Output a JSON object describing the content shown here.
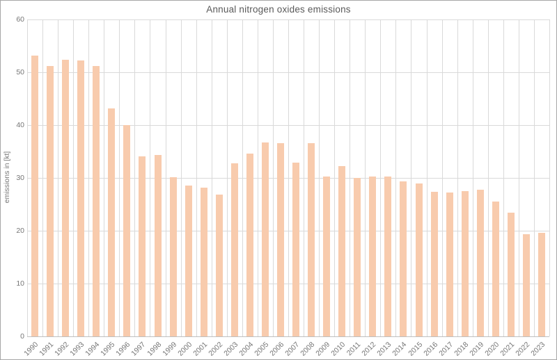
{
  "window": {
    "background": "#ffffff",
    "border_color": "#a6a6a6"
  },
  "chart_data": {
    "type": "bar",
    "title": "Annual nitrogen oxides emissions",
    "xlabel": "",
    "ylabel": "emissions in [kt]",
    "categories": [
      "1990",
      "1991",
      "1992",
      "1993",
      "1994",
      "1995",
      "1996",
      "1997",
      "1998",
      "1999",
      "2000",
      "2001",
      "2002",
      "2003",
      "2004",
      "2005",
      "2006",
      "2007",
      "2008",
      "2009",
      "2010",
      "2011",
      "2012",
      "2013",
      "2014",
      "2015",
      "2016",
      "2017",
      "2018",
      "2019",
      "2020",
      "2021",
      "2022",
      "2023"
    ],
    "values": [
      53.2,
      51.2,
      52.4,
      52.3,
      51.2,
      43.2,
      40.0,
      34.1,
      34.3,
      30.1,
      28.6,
      28.2,
      26.8,
      32.7,
      34.6,
      36.7,
      36.6,
      32.9,
      36.6,
      30.2,
      32.3,
      30.0,
      30.3,
      30.2,
      29.3,
      29.0,
      27.4,
      27.3,
      27.5,
      27.7,
      25.5,
      23.4,
      19.3,
      19.6
    ],
    "ylim": [
      0,
      60
    ],
    "yticks": [
      0,
      10,
      20,
      30,
      40,
      50,
      60
    ],
    "grid": "horizontal and vertical category lines",
    "legend_position": "none",
    "bar_color": "#f8cbad",
    "gridline_color": "#d9d9d9",
    "axis_line_color": "#bfbfbf",
    "tick_label_color": "#757575",
    "title_color": "#595959"
  }
}
